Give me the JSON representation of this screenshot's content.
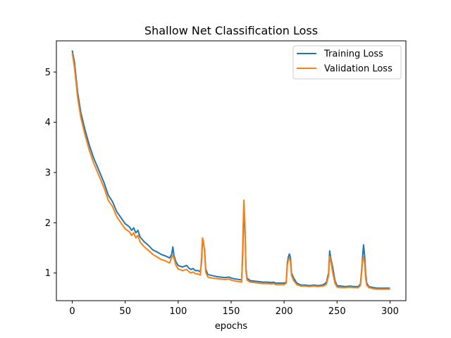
{
  "chart_data": {
    "type": "line",
    "title": "Shallow Net Classification Loss",
    "xlabel": "epochs",
    "ylabel": "",
    "xlim": [
      -15,
      315
    ],
    "ylim": [
      0.45,
      5.62
    ],
    "xticks": [
      0,
      50,
      100,
      150,
      200,
      250,
      300
    ],
    "yticks": [
      1,
      2,
      3,
      4,
      5
    ],
    "grid": false,
    "legend": "top-right",
    "series": [
      {
        "name": "Training Loss",
        "color": "#1f77b4",
        "points": [
          [
            0,
            5.43
          ],
          [
            2,
            5.2
          ],
          [
            5,
            4.6
          ],
          [
            8,
            4.2
          ],
          [
            12,
            3.85
          ],
          [
            16,
            3.55
          ],
          [
            20,
            3.3
          ],
          [
            25,
            3.05
          ],
          [
            30,
            2.8
          ],
          [
            34,
            2.55
          ],
          [
            38,
            2.42
          ],
          [
            42,
            2.22
          ],
          [
            46,
            2.1
          ],
          [
            50,
            1.98
          ],
          [
            54,
            1.92
          ],
          [
            56,
            1.85
          ],
          [
            58,
            1.9
          ],
          [
            60,
            1.8
          ],
          [
            62,
            1.85
          ],
          [
            64,
            1.72
          ],
          [
            68,
            1.62
          ],
          [
            72,
            1.55
          ],
          [
            76,
            1.46
          ],
          [
            80,
            1.42
          ],
          [
            84,
            1.37
          ],
          [
            88,
            1.34
          ],
          [
            92,
            1.3
          ],
          [
            94,
            1.38
          ],
          [
            95,
            1.52
          ],
          [
            96,
            1.35
          ],
          [
            98,
            1.22
          ],
          [
            100,
            1.15
          ],
          [
            104,
            1.12
          ],
          [
            108,
            1.15
          ],
          [
            110,
            1.1
          ],
          [
            112,
            1.07
          ],
          [
            114,
            1.09
          ],
          [
            116,
            1.05
          ],
          [
            119,
            1.05
          ],
          [
            121,
            1.02
          ],
          [
            122,
            1.2
          ],
          [
            123,
            1.66
          ],
          [
            124,
            1.58
          ],
          [
            125,
            1.45
          ],
          [
            126,
            1.08
          ],
          [
            128,
            0.97
          ],
          [
            132,
            0.95
          ],
          [
            136,
            0.93
          ],
          [
            140,
            0.92
          ],
          [
            144,
            0.91
          ],
          [
            148,
            0.92
          ],
          [
            150,
            0.9
          ],
          [
            154,
            0.88
          ],
          [
            158,
            0.87
          ],
          [
            160,
            0.86
          ],
          [
            161,
            1.4
          ],
          [
            162,
            2.27
          ],
          [
            163,
            1.9
          ],
          [
            164,
            1.1
          ],
          [
            165,
            0.9
          ],
          [
            168,
            0.85
          ],
          [
            172,
            0.84
          ],
          [
            176,
            0.83
          ],
          [
            180,
            0.82
          ],
          [
            184,
            0.82
          ],
          [
            188,
            0.81
          ],
          [
            190,
            0.82
          ],
          [
            192,
            0.8
          ],
          [
            196,
            0.8
          ],
          [
            200,
            0.8
          ],
          [
            202,
            0.82
          ],
          [
            203,
            1.2
          ],
          [
            204,
            1.32
          ],
          [
            205,
            1.38
          ],
          [
            206,
            1.3
          ],
          [
            207,
            1.0
          ],
          [
            209,
            0.9
          ],
          [
            212,
            0.8
          ],
          [
            216,
            0.76
          ],
          [
            220,
            0.76
          ],
          [
            224,
            0.75
          ],
          [
            228,
            0.76
          ],
          [
            232,
            0.75
          ],
          [
            236,
            0.76
          ],
          [
            238,
            0.78
          ],
          [
            240,
            0.82
          ],
          [
            242,
            1.0
          ],
          [
            243,
            1.44
          ],
          [
            244,
            1.3
          ],
          [
            246,
            1.1
          ],
          [
            248,
            0.85
          ],
          [
            250,
            0.75
          ],
          [
            254,
            0.74
          ],
          [
            258,
            0.73
          ],
          [
            262,
            0.74
          ],
          [
            266,
            0.73
          ],
          [
            270,
            0.73
          ],
          [
            272,
            0.78
          ],
          [
            273,
            1.0
          ],
          [
            274,
            1.3
          ],
          [
            275,
            1.56
          ],
          [
            276,
            1.35
          ],
          [
            277,
            1.0
          ],
          [
            278,
            0.8
          ],
          [
            280,
            0.73
          ],
          [
            284,
            0.71
          ],
          [
            288,
            0.7
          ],
          [
            292,
            0.7
          ],
          [
            296,
            0.7
          ],
          [
            300,
            0.7
          ]
        ]
      },
      {
        "name": "Validation Loss",
        "color": "#ff7f0e",
        "points": [
          [
            0,
            5.38
          ],
          [
            2,
            5.1
          ],
          [
            5,
            4.5
          ],
          [
            8,
            4.1
          ],
          [
            12,
            3.75
          ],
          [
            16,
            3.45
          ],
          [
            20,
            3.2
          ],
          [
            25,
            2.95
          ],
          [
            30,
            2.7
          ],
          [
            34,
            2.45
          ],
          [
            38,
            2.32
          ],
          [
            42,
            2.12
          ],
          [
            46,
            2.0
          ],
          [
            50,
            1.88
          ],
          [
            54,
            1.82
          ],
          [
            56,
            1.75
          ],
          [
            58,
            1.8
          ],
          [
            60,
            1.7
          ],
          [
            62,
            1.75
          ],
          [
            64,
            1.62
          ],
          [
            68,
            1.52
          ],
          [
            72,
            1.45
          ],
          [
            76,
            1.37
          ],
          [
            80,
            1.32
          ],
          [
            84,
            1.27
          ],
          [
            88,
            1.24
          ],
          [
            92,
            1.2
          ],
          [
            94,
            1.32
          ],
          [
            95,
            1.35
          ],
          [
            96,
            1.3
          ],
          [
            98,
            1.15
          ],
          [
            100,
            1.08
          ],
          [
            104,
            1.05
          ],
          [
            108,
            1.07
          ],
          [
            110,
            1.03
          ],
          [
            112,
            1.0
          ],
          [
            114,
            1.02
          ],
          [
            116,
            0.99
          ],
          [
            119,
            0.98
          ],
          [
            121,
            0.96
          ],
          [
            122,
            1.3
          ],
          [
            123,
            1.7
          ],
          [
            124,
            1.62
          ],
          [
            125,
            1.4
          ],
          [
            126,
            1.02
          ],
          [
            128,
            0.92
          ],
          [
            132,
            0.9
          ],
          [
            136,
            0.89
          ],
          [
            140,
            0.88
          ],
          [
            144,
            0.87
          ],
          [
            148,
            0.88
          ],
          [
            150,
            0.86
          ],
          [
            154,
            0.84
          ],
          [
            158,
            0.83
          ],
          [
            160,
            0.82
          ],
          [
            161,
            1.6
          ],
          [
            162,
            2.45
          ],
          [
            163,
            2.0
          ],
          [
            164,
            1.05
          ],
          [
            165,
            0.86
          ],
          [
            168,
            0.82
          ],
          [
            172,
            0.81
          ],
          [
            176,
            0.8
          ],
          [
            180,
            0.79
          ],
          [
            184,
            0.79
          ],
          [
            188,
            0.78
          ],
          [
            190,
            0.79
          ],
          [
            192,
            0.77
          ],
          [
            196,
            0.77
          ],
          [
            200,
            0.77
          ],
          [
            202,
            0.8
          ],
          [
            203,
            1.15
          ],
          [
            204,
            1.26
          ],
          [
            205,
            1.3
          ],
          [
            206,
            1.22
          ],
          [
            207,
            0.95
          ],
          [
            209,
            0.85
          ],
          [
            212,
            0.77
          ],
          [
            216,
            0.74
          ],
          [
            220,
            0.74
          ],
          [
            224,
            0.73
          ],
          [
            228,
            0.74
          ],
          [
            232,
            0.73
          ],
          [
            236,
            0.74
          ],
          [
            238,
            0.75
          ],
          [
            240,
            0.78
          ],
          [
            242,
            0.95
          ],
          [
            243,
            1.33
          ],
          [
            244,
            1.25
          ],
          [
            246,
            1.0
          ],
          [
            248,
            0.8
          ],
          [
            250,
            0.72
          ],
          [
            254,
            0.71
          ],
          [
            258,
            0.71
          ],
          [
            262,
            0.72
          ],
          [
            266,
            0.71
          ],
          [
            270,
            0.71
          ],
          [
            272,
            0.75
          ],
          [
            273,
            0.95
          ],
          [
            274,
            1.25
          ],
          [
            275,
            1.32
          ],
          [
            276,
            1.2
          ],
          [
            277,
            0.9
          ],
          [
            278,
            0.76
          ],
          [
            280,
            0.71
          ],
          [
            284,
            0.69
          ],
          [
            288,
            0.68
          ],
          [
            292,
            0.68
          ],
          [
            296,
            0.68
          ],
          [
            300,
            0.68
          ]
        ]
      }
    ]
  }
}
